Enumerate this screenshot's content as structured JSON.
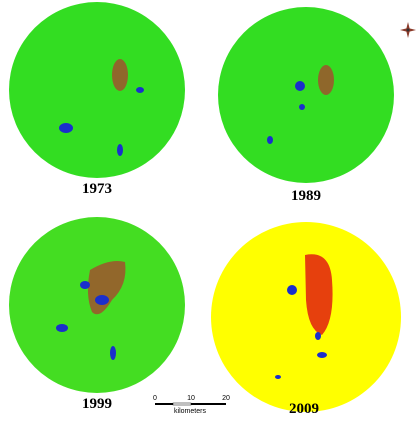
{
  "maps": [
    {
      "year": "1973"
    },
    {
      "year": "1989"
    },
    {
      "year": "1999"
    },
    {
      "year": "2009"
    }
  ],
  "scale_bar": {
    "ticks": [
      "0",
      "10",
      "20"
    ],
    "unit": "kilometers"
  }
}
